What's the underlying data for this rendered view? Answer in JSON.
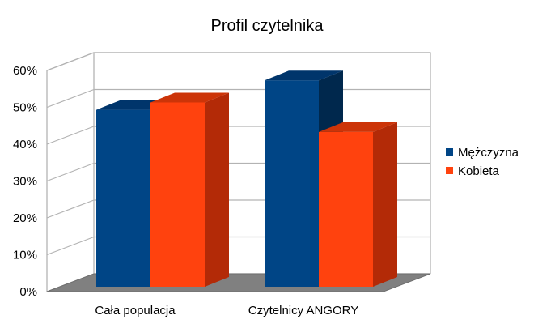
{
  "chart_data": {
    "type": "bar",
    "title": "Profil czytelnika",
    "xlabel": "",
    "ylabel": "",
    "categories": [
      "Cała populacja",
      "Czytelnicy ANGORY"
    ],
    "series": [
      {
        "name": "Mężczyzna",
        "values": [
          48,
          56
        ],
        "color": "#004586",
        "side_color": "#00284d",
        "top_color": "#00356b"
      },
      {
        "name": "Kobieta",
        "values": [
          50,
          42
        ],
        "color": "#ff420e",
        "side_color": "#b32a07",
        "top_color": "#cc3408"
      }
    ],
    "ylim": [
      0,
      60
    ],
    "yticks": [
      {
        "value": 0,
        "label": "0%"
      },
      {
        "value": 10,
        "label": "10%"
      },
      {
        "value": 20,
        "label": "20%"
      },
      {
        "value": 30,
        "label": "30%"
      },
      {
        "value": 40,
        "label": "40%"
      },
      {
        "value": 50,
        "label": "50%"
      },
      {
        "value": 60,
        "label": "60%"
      }
    ],
    "grid": true,
    "legend_position": "right",
    "style": "3d",
    "floor_color": "#808080",
    "grid_color": "#b3b3b3"
  }
}
